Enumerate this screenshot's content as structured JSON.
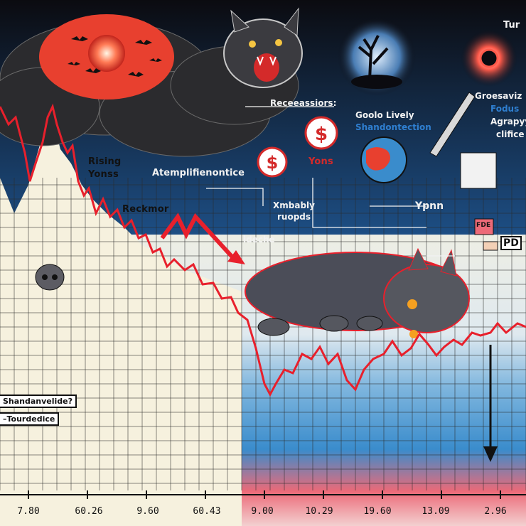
{
  "labels": {
    "tun": "Tur",
    "recessions": "Receeassiors:",
    "goolo": "Goolo Lively",
    "shandon": "Shandontection",
    "groesa": "Groesaviz",
    "fodus": "Fodus",
    "agrapy": "Agrapyy",
    "ofiice": "clifice",
    "rising": "Rising",
    "yonss": "Yonss",
    "atemp": "Atemplifienontice",
    "yons": "Yons",
    "reckmor": "Reckmor",
    "xmbably": "Xmbably",
    "ruopds": "ruopds",
    "ideche": "ideche",
    "ypnn": "Ypnn",
    "pd": "PD",
    "fde": "FDE",
    "shandan": "Shandanvelide?",
    "tourdedice": "–Tourdedice"
  },
  "x_ticks": [
    "7.80",
    "60.26",
    "9.60",
    "60.43",
    "9.00",
    "10.29",
    "19.60",
    "13.09",
    "2.96"
  ],
  "colors": {
    "sky_black": "#0b0b10",
    "sky_red": "#e8402f",
    "cream": "#f6f1de",
    "blue": "#3a8ccc",
    "pink": "#ec6a78",
    "line": "#e8202c"
  }
}
